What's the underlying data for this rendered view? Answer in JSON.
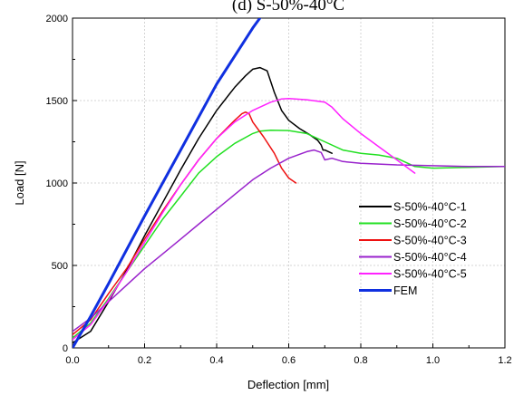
{
  "chart_data": {
    "type": "line",
    "title": "(d) S-50%-40°C",
    "xlabel": "Deflection [mm]",
    "ylabel": "Load [N]",
    "xlim": [
      0,
      1.2
    ],
    "ylim": [
      0,
      2000
    ],
    "xticks": [
      "0.0",
      "0.2",
      "0.4",
      "0.6",
      "0.8",
      "1.0",
      "1.2"
    ],
    "yticks": [
      "0",
      "500",
      "1000",
      "1500",
      "2000"
    ],
    "grid": true,
    "legend_position": "right",
    "series": [
      {
        "name": "S-50%-40°C-1",
        "color": "#000000",
        "points": [
          [
            0.0,
            30
          ],
          [
            0.05,
            100
          ],
          [
            0.1,
            280
          ],
          [
            0.15,
            470
          ],
          [
            0.2,
            680
          ],
          [
            0.25,
            880
          ],
          [
            0.3,
            1080
          ],
          [
            0.35,
            1270
          ],
          [
            0.4,
            1440
          ],
          [
            0.45,
            1580
          ],
          [
            0.48,
            1650
          ],
          [
            0.5,
            1690
          ],
          [
            0.52,
            1700
          ],
          [
            0.54,
            1680
          ],
          [
            0.56,
            1550
          ],
          [
            0.58,
            1440
          ],
          [
            0.6,
            1380
          ],
          [
            0.63,
            1330
          ],
          [
            0.66,
            1290
          ],
          [
            0.68,
            1260
          ],
          [
            0.69,
            1230
          ],
          [
            0.695,
            1200
          ],
          [
            0.7,
            1200
          ],
          [
            0.72,
            1180
          ]
        ]
      },
      {
        "name": "S-50%-40°C-2",
        "color": "#22e022",
        "points": [
          [
            0.0,
            60
          ],
          [
            0.05,
            150
          ],
          [
            0.1,
            300
          ],
          [
            0.15,
            460
          ],
          [
            0.2,
            620
          ],
          [
            0.25,
            780
          ],
          [
            0.3,
            920
          ],
          [
            0.35,
            1060
          ],
          [
            0.4,
            1160
          ],
          [
            0.45,
            1240
          ],
          [
            0.5,
            1300
          ],
          [
            0.52,
            1315
          ],
          [
            0.55,
            1320
          ],
          [
            0.6,
            1318
          ],
          [
            0.65,
            1300
          ],
          [
            0.7,
            1250
          ],
          [
            0.75,
            1200
          ],
          [
            0.8,
            1180
          ],
          [
            0.85,
            1170
          ],
          [
            0.9,
            1150
          ],
          [
            0.95,
            1100
          ],
          [
            1.0,
            1090
          ],
          [
            1.1,
            1095
          ],
          [
            1.2,
            1100
          ]
        ]
      },
      {
        "name": "S-50%-40°C-3",
        "color": "#ee1111",
        "points": [
          [
            0.0,
            80
          ],
          [
            0.05,
            170
          ],
          [
            0.1,
            330
          ],
          [
            0.15,
            480
          ],
          [
            0.2,
            660
          ],
          [
            0.25,
            830
          ],
          [
            0.3,
            990
          ],
          [
            0.35,
            1140
          ],
          [
            0.4,
            1270
          ],
          [
            0.45,
            1380
          ],
          [
            0.47,
            1420
          ],
          [
            0.48,
            1430
          ],
          [
            0.49,
            1420
          ],
          [
            0.5,
            1370
          ],
          [
            0.53,
            1280
          ],
          [
            0.56,
            1180
          ],
          [
            0.58,
            1090
          ],
          [
            0.6,
            1030
          ],
          [
            0.62,
            1000
          ]
        ]
      },
      {
        "name": "S-50%-40°C-4",
        "color": "#9922cc",
        "points": [
          [
            0.0,
            100
          ],
          [
            0.05,
            180
          ],
          [
            0.1,
            280
          ],
          [
            0.15,
            380
          ],
          [
            0.2,
            480
          ],
          [
            0.25,
            570
          ],
          [
            0.3,
            660
          ],
          [
            0.35,
            750
          ],
          [
            0.4,
            840
          ],
          [
            0.45,
            930
          ],
          [
            0.5,
            1020
          ],
          [
            0.55,
            1090
          ],
          [
            0.6,
            1150
          ],
          [
            0.65,
            1190
          ],
          [
            0.67,
            1200
          ],
          [
            0.69,
            1185
          ],
          [
            0.7,
            1140
          ],
          [
            0.72,
            1150
          ],
          [
            0.75,
            1130
          ],
          [
            0.8,
            1120
          ],
          [
            0.9,
            1110
          ],
          [
            1.0,
            1105
          ],
          [
            1.1,
            1100
          ],
          [
            1.2,
            1100
          ]
        ]
      },
      {
        "name": "S-50%-40°C-5",
        "color": "#ff22ff",
        "points": [
          [
            0.0,
            50
          ],
          [
            0.05,
            140
          ],
          [
            0.1,
            290
          ],
          [
            0.15,
            460
          ],
          [
            0.2,
            640
          ],
          [
            0.25,
            820
          ],
          [
            0.3,
            990
          ],
          [
            0.35,
            1140
          ],
          [
            0.4,
            1270
          ],
          [
            0.45,
            1370
          ],
          [
            0.5,
            1440
          ],
          [
            0.55,
            1490
          ],
          [
            0.58,
            1510
          ],
          [
            0.6,
            1512
          ],
          [
            0.65,
            1505
          ],
          [
            0.7,
            1490
          ],
          [
            0.72,
            1460
          ],
          [
            0.75,
            1390
          ],
          [
            0.8,
            1300
          ],
          [
            0.85,
            1220
          ],
          [
            0.9,
            1140
          ],
          [
            0.95,
            1060
          ]
        ]
      },
      {
        "name": "FEM",
        "color": "#1030e0",
        "width": 3,
        "points": [
          [
            0.0,
            0
          ],
          [
            0.05,
            190
          ],
          [
            0.1,
            390
          ],
          [
            0.2,
            800
          ],
          [
            0.3,
            1200
          ],
          [
            0.4,
            1600
          ],
          [
            0.5,
            1940
          ],
          [
            0.52,
            2000
          ]
        ]
      }
    ]
  }
}
